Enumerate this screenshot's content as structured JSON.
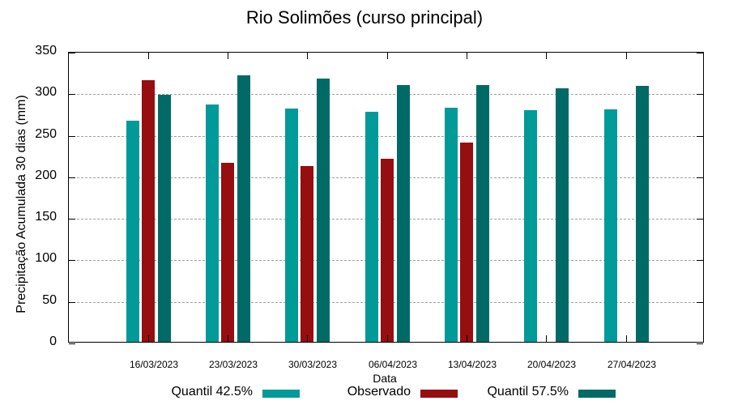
{
  "chart_data": {
    "type": "bar",
    "title": "Rio Solimões (curso principal)",
    "xlabel": "Data",
    "ylabel": "Precipitação Acumulada 30 dias (mm)",
    "ylim": [
      0,
      350
    ],
    "yticks": [
      0,
      50,
      100,
      150,
      200,
      250,
      300,
      350
    ],
    "grid": true,
    "legend_position": "bottom",
    "categories": [
      "16/03/2023",
      "23/03/2023",
      "30/03/2023",
      "06/04/2023",
      "13/04/2023",
      "20/04/2023",
      "27/04/2023"
    ],
    "series": [
      {
        "name": "Quantil 42.5%",
        "color": "#009a99",
        "values": [
          266,
          286,
          281,
          277,
          282,
          279,
          280
        ]
      },
      {
        "name": "Observado",
        "color": "#960e10",
        "values": [
          315,
          215,
          212,
          220,
          240,
          null,
          null
        ]
      },
      {
        "name": "Quantil 57.5%",
        "color": "#006b66",
        "values": [
          297,
          321,
          317,
          309,
          309,
          305,
          308
        ]
      }
    ]
  },
  "yticks_labels": [
    "0",
    "50",
    "100",
    "150",
    "200",
    "250",
    "300",
    "350"
  ],
  "legend": {
    "q425": "Quantil 42.5%",
    "obs": "Observado",
    "q575": "Quantil 57.5%"
  }
}
